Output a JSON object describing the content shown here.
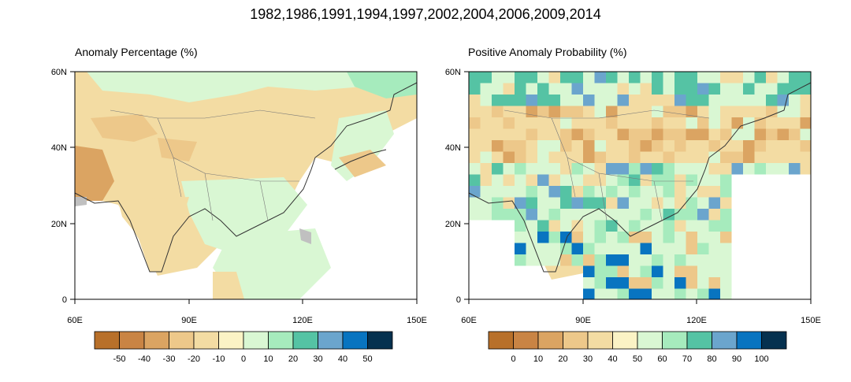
{
  "title": "1982,1986,1991,1994,1997,2002,2004,2006,2009,2014",
  "panels": [
    {
      "title": "Anomaly Percentage (%)",
      "lon_labels": [
        "60E",
        "90E",
        "120E",
        "150E"
      ],
      "lat_labels": [
        "60N",
        "40N",
        "20N",
        "0"
      ],
      "colorbar_labels": [
        "-50",
        "-40",
        "-30",
        "-20",
        "-10",
        "0",
        "10",
        "20",
        "30",
        "40",
        "50"
      ]
    },
    {
      "title": "Positive Anomaly Probability (%)",
      "lon_labels": [
        "60E",
        "90E",
        "120E",
        "150E"
      ],
      "lat_labels": [
        "60N",
        "40N",
        "20N",
        "0"
      ],
      "colorbar_labels": [
        "0",
        "10",
        "20",
        "30",
        "40",
        "50",
        "60",
        "70",
        "80",
        "90",
        "100"
      ]
    }
  ],
  "colorbar_colors": [
    "#b8702a",
    "#c98444",
    "#dba462",
    "#edc88a",
    "#f3dca3",
    "#fbf3c5",
    "#d9f7d3",
    "#a6ebbd",
    "#55c3a4",
    "#6ba5cd",
    "#0874c0",
    "#05314f"
  ],
  "map_colors": {
    "land_missing": "#c0c0c0",
    "ocean": "#ffffff",
    "coast": "#333333",
    "border": "#666666"
  }
}
